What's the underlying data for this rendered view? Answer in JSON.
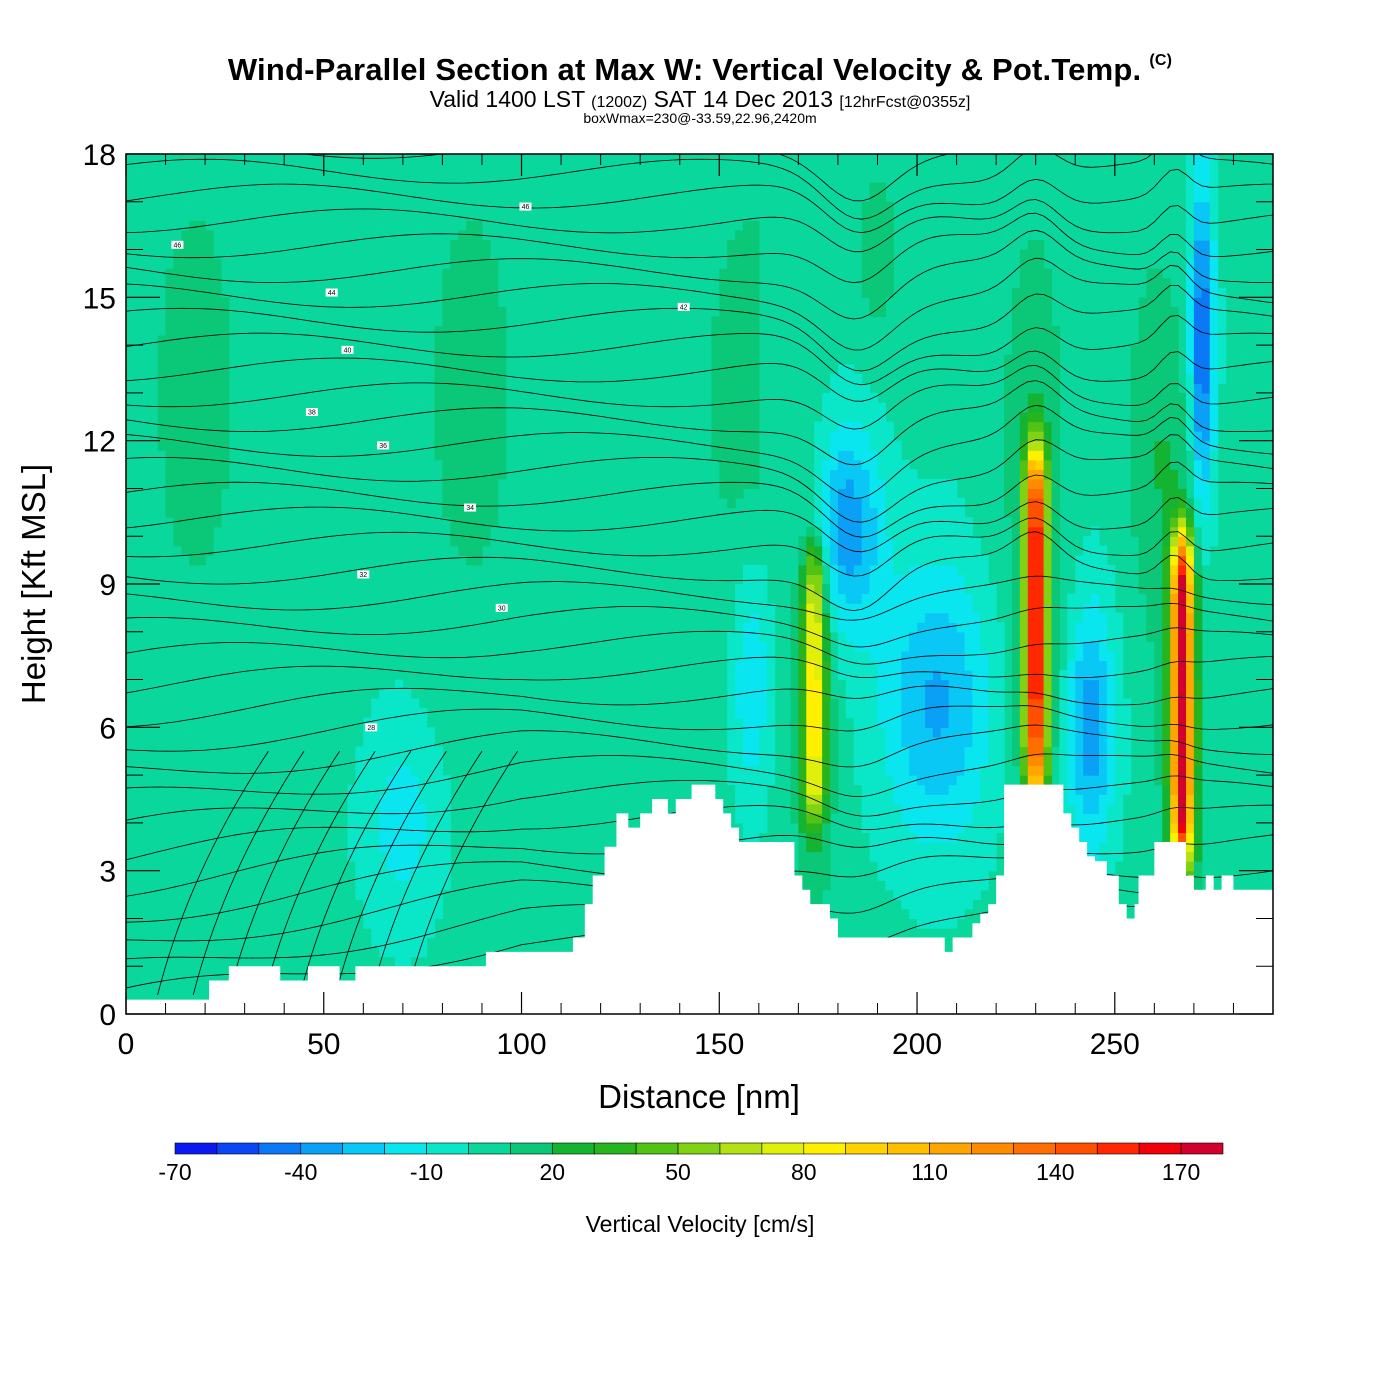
{
  "chart_data": {
    "type": "heatmap",
    "title": "Wind-Parallel Section at Max W: Vertical Velocity & Pot.Temp.",
    "title_mark": "(C)",
    "subtitle_main1": "Valid 1400 LST",
    "subtitle_z": "(1200Z)",
    "subtitle_main2": "SAT 14 Dec 2013",
    "subtitle_fcst": "[12hrFcst@0355z]",
    "subtitle2": "boxWmax=230@-33.59,22.96,2420m",
    "xlabel": "Distance [nm]",
    "ylabel": "Height [Kft MSL]",
    "xlim": [
      0,
      290
    ],
    "ylim": [
      0,
      18
    ],
    "xticks": [
      0,
      50,
      100,
      150,
      200,
      250
    ],
    "yticks": [
      0,
      3,
      6,
      9,
      12,
      15,
      18
    ],
    "colorbar": {
      "label": "Vertical Velocity [cm/s]",
      "tick_labels": [
        "-70",
        "-40",
        "-10",
        "20",
        "50",
        "80",
        "110",
        "140",
        "170"
      ],
      "levels": [
        -70,
        -60,
        -50,
        -40,
        -30,
        -20,
        -10,
        0,
        10,
        20,
        30,
        40,
        50,
        60,
        70,
        80,
        90,
        100,
        110,
        120,
        130,
        140,
        150,
        160,
        170,
        180
      ],
      "colors": [
        "#0a19f0",
        "#0a46f5",
        "#0b78f5",
        "#0aa0f5",
        "#0ac8f5",
        "#0ae6f0",
        "#0ae6c8",
        "#0ad79b",
        "#0ac878",
        "#14b432",
        "#28b41e",
        "#50c314",
        "#82d214",
        "#b4e114",
        "#e1f00a",
        "#fff000",
        "#ffd200",
        "#ffbe00",
        "#ffa500",
        "#ff8c00",
        "#ff6e00",
        "#ff5000",
        "#ff2800",
        "#f0000a",
        "#d2002d"
      ]
    },
    "terrain": {
      "x": [
        0,
        21,
        21,
        26,
        26,
        39,
        39,
        46,
        46,
        54,
        54,
        58,
        58,
        91,
        91,
        113,
        113,
        116,
        116,
        118,
        118,
        121,
        121,
        124,
        124,
        127,
        127,
        130,
        130,
        133,
        133,
        137,
        137,
        139,
        139,
        143,
        143,
        149,
        149,
        151,
        151,
        153,
        153,
        155,
        155,
        157,
        157,
        169,
        169,
        171,
        171,
        173,
        173,
        178,
        178,
        180,
        180,
        184,
        184,
        207,
        207,
        209,
        209,
        214,
        214,
        216,
        216,
        218,
        218,
        220,
        220,
        222,
        222,
        228,
        228,
        237,
        237,
        239,
        239,
        241,
        241,
        243,
        243,
        245,
        245,
        248,
        248,
        251,
        251,
        253,
        253,
        255,
        255,
        256,
        256,
        260,
        260,
        263,
        263,
        268,
        268,
        270,
        270,
        273,
        273,
        275,
        275,
        277,
        277,
        280,
        280,
        282,
        282,
        290
      ],
      "y": [
        0.3,
        0.3,
        0.7,
        0.7,
        1.0,
        1.0,
        0.7,
        0.7,
        1.0,
        1.0,
        0.7,
        0.7,
        1.0,
        1.0,
        1.3,
        1.3,
        1.6,
        1.6,
        2.3,
        2.3,
        2.9,
        2.9,
        3.5,
        3.5,
        4.2,
        4.2,
        3.9,
        3.9,
        4.2,
        4.2,
        4.5,
        4.5,
        4.2,
        4.2,
        4.5,
        4.5,
        4.8,
        4.8,
        4.5,
        4.5,
        4.2,
        4.2,
        3.9,
        3.9,
        3.6,
        3.6,
        3.6,
        3.6,
        2.9,
        2.9,
        2.6,
        2.6,
        2.3,
        2.3,
        2.0,
        2.0,
        1.6,
        1.6,
        1.6,
        1.6,
        1.3,
        1.3,
        1.6,
        1.6,
        1.9,
        1.9,
        2.1,
        2.1,
        2.3,
        2.3,
        2.9,
        2.9,
        4.8,
        4.8,
        4.8,
        4.8,
        4.2,
        4.2,
        3.9,
        3.9,
        3.6,
        3.6,
        3.3,
        3.3,
        3.2,
        3.2,
        2.9,
        2.9,
        2.3,
        2.3,
        2.0,
        2.0,
        2.3,
        2.3,
        2.9,
        2.9,
        3.6,
        3.6,
        3.6,
        3.6,
        2.9,
        2.9,
        2.6,
        2.6,
        2.9,
        2.9,
        2.6,
        2.6,
        2.9,
        2.9,
        2.6,
        2.6,
        2.6,
        2.6
      ]
    },
    "contour_labels": [
      "46",
      "46",
      "44",
      "42",
      "40",
      "38",
      "36",
      "34",
      "32",
      "30",
      "28"
    ],
    "features": [
      {
        "x": 230,
        "ytop": 11.3,
        "ybot": 5.0,
        "peak": 150
      },
      {
        "x": 267,
        "ytop": 9.5,
        "ybot": 3.6,
        "peak": 170
      },
      {
        "x": 174,
        "ytop": 9.2,
        "ybot": 4.5,
        "peak": 70
      }
    ]
  }
}
